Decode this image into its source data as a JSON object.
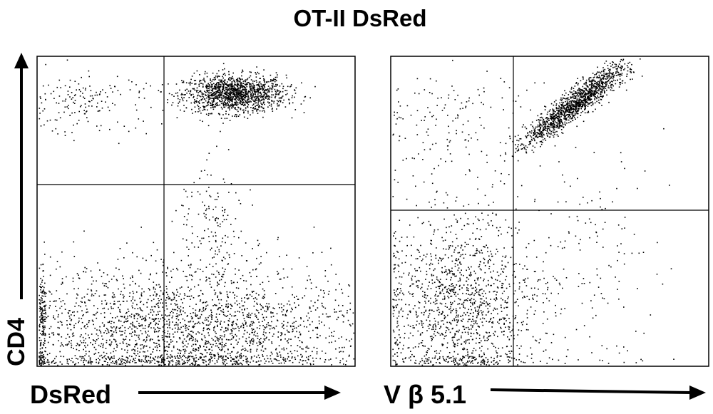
{
  "figure": {
    "title": "OT-II DsRed",
    "ylabel": "CD4"
  },
  "chart_data": [
    {
      "type": "scatter",
      "title": "OT-II DsRed",
      "xlabel": "DsRed",
      "ylabel": "CD4",
      "axis_scale": "log (flow cytometry, unlabeled ticks)",
      "grid": false,
      "quadrant_gates": {
        "x": 0.325,
        "y": 0.55
      },
      "populations": [
        {
          "name": "CD4+ DsRed+ (dense)",
          "center": [
            0.62,
            0.88
          ],
          "spread": [
            0.08,
            0.03
          ],
          "density": "very high"
        },
        {
          "name": "CD4- DsRed- / DsRed+ (dense band)",
          "center": [
            0.45,
            0.12
          ],
          "spread": [
            0.3,
            0.1
          ],
          "density": "high"
        },
        {
          "name": "sparse upper-left",
          "center": [
            0.15,
            0.85
          ],
          "spread": [
            0.1,
            0.05
          ],
          "density": "low"
        },
        {
          "name": "tail rising",
          "center": [
            0.55,
            0.45
          ],
          "spread": [
            0.05,
            0.1
          ],
          "density": "low"
        }
      ]
    },
    {
      "type": "scatter",
      "title": "OT-II DsRed",
      "xlabel": "V β 5.1",
      "ylabel": "CD4",
      "axis_scale": "log (flow cytometry, unlabeled ticks)",
      "grid": false,
      "quadrant_gates": {
        "x": 0.38,
        "y": 0.49
      },
      "populations": [
        {
          "name": "CD4+ Vβ5.1+ (diagonal)",
          "center": [
            0.58,
            0.85
          ],
          "spread": [
            0.1,
            0.07
          ],
          "density": "very high"
        },
        {
          "name": "CD4- Vβ5.1- (dense)",
          "center": [
            0.22,
            0.2
          ],
          "spread": [
            0.12,
            0.14
          ],
          "density": "very high"
        },
        {
          "name": "sparse upper-left",
          "center": [
            0.18,
            0.78
          ],
          "spread": [
            0.12,
            0.1
          ],
          "density": "low"
        },
        {
          "name": "sparse right",
          "center": [
            0.62,
            0.35
          ],
          "spread": [
            0.15,
            0.2
          ],
          "density": "low"
        }
      ]
    }
  ]
}
